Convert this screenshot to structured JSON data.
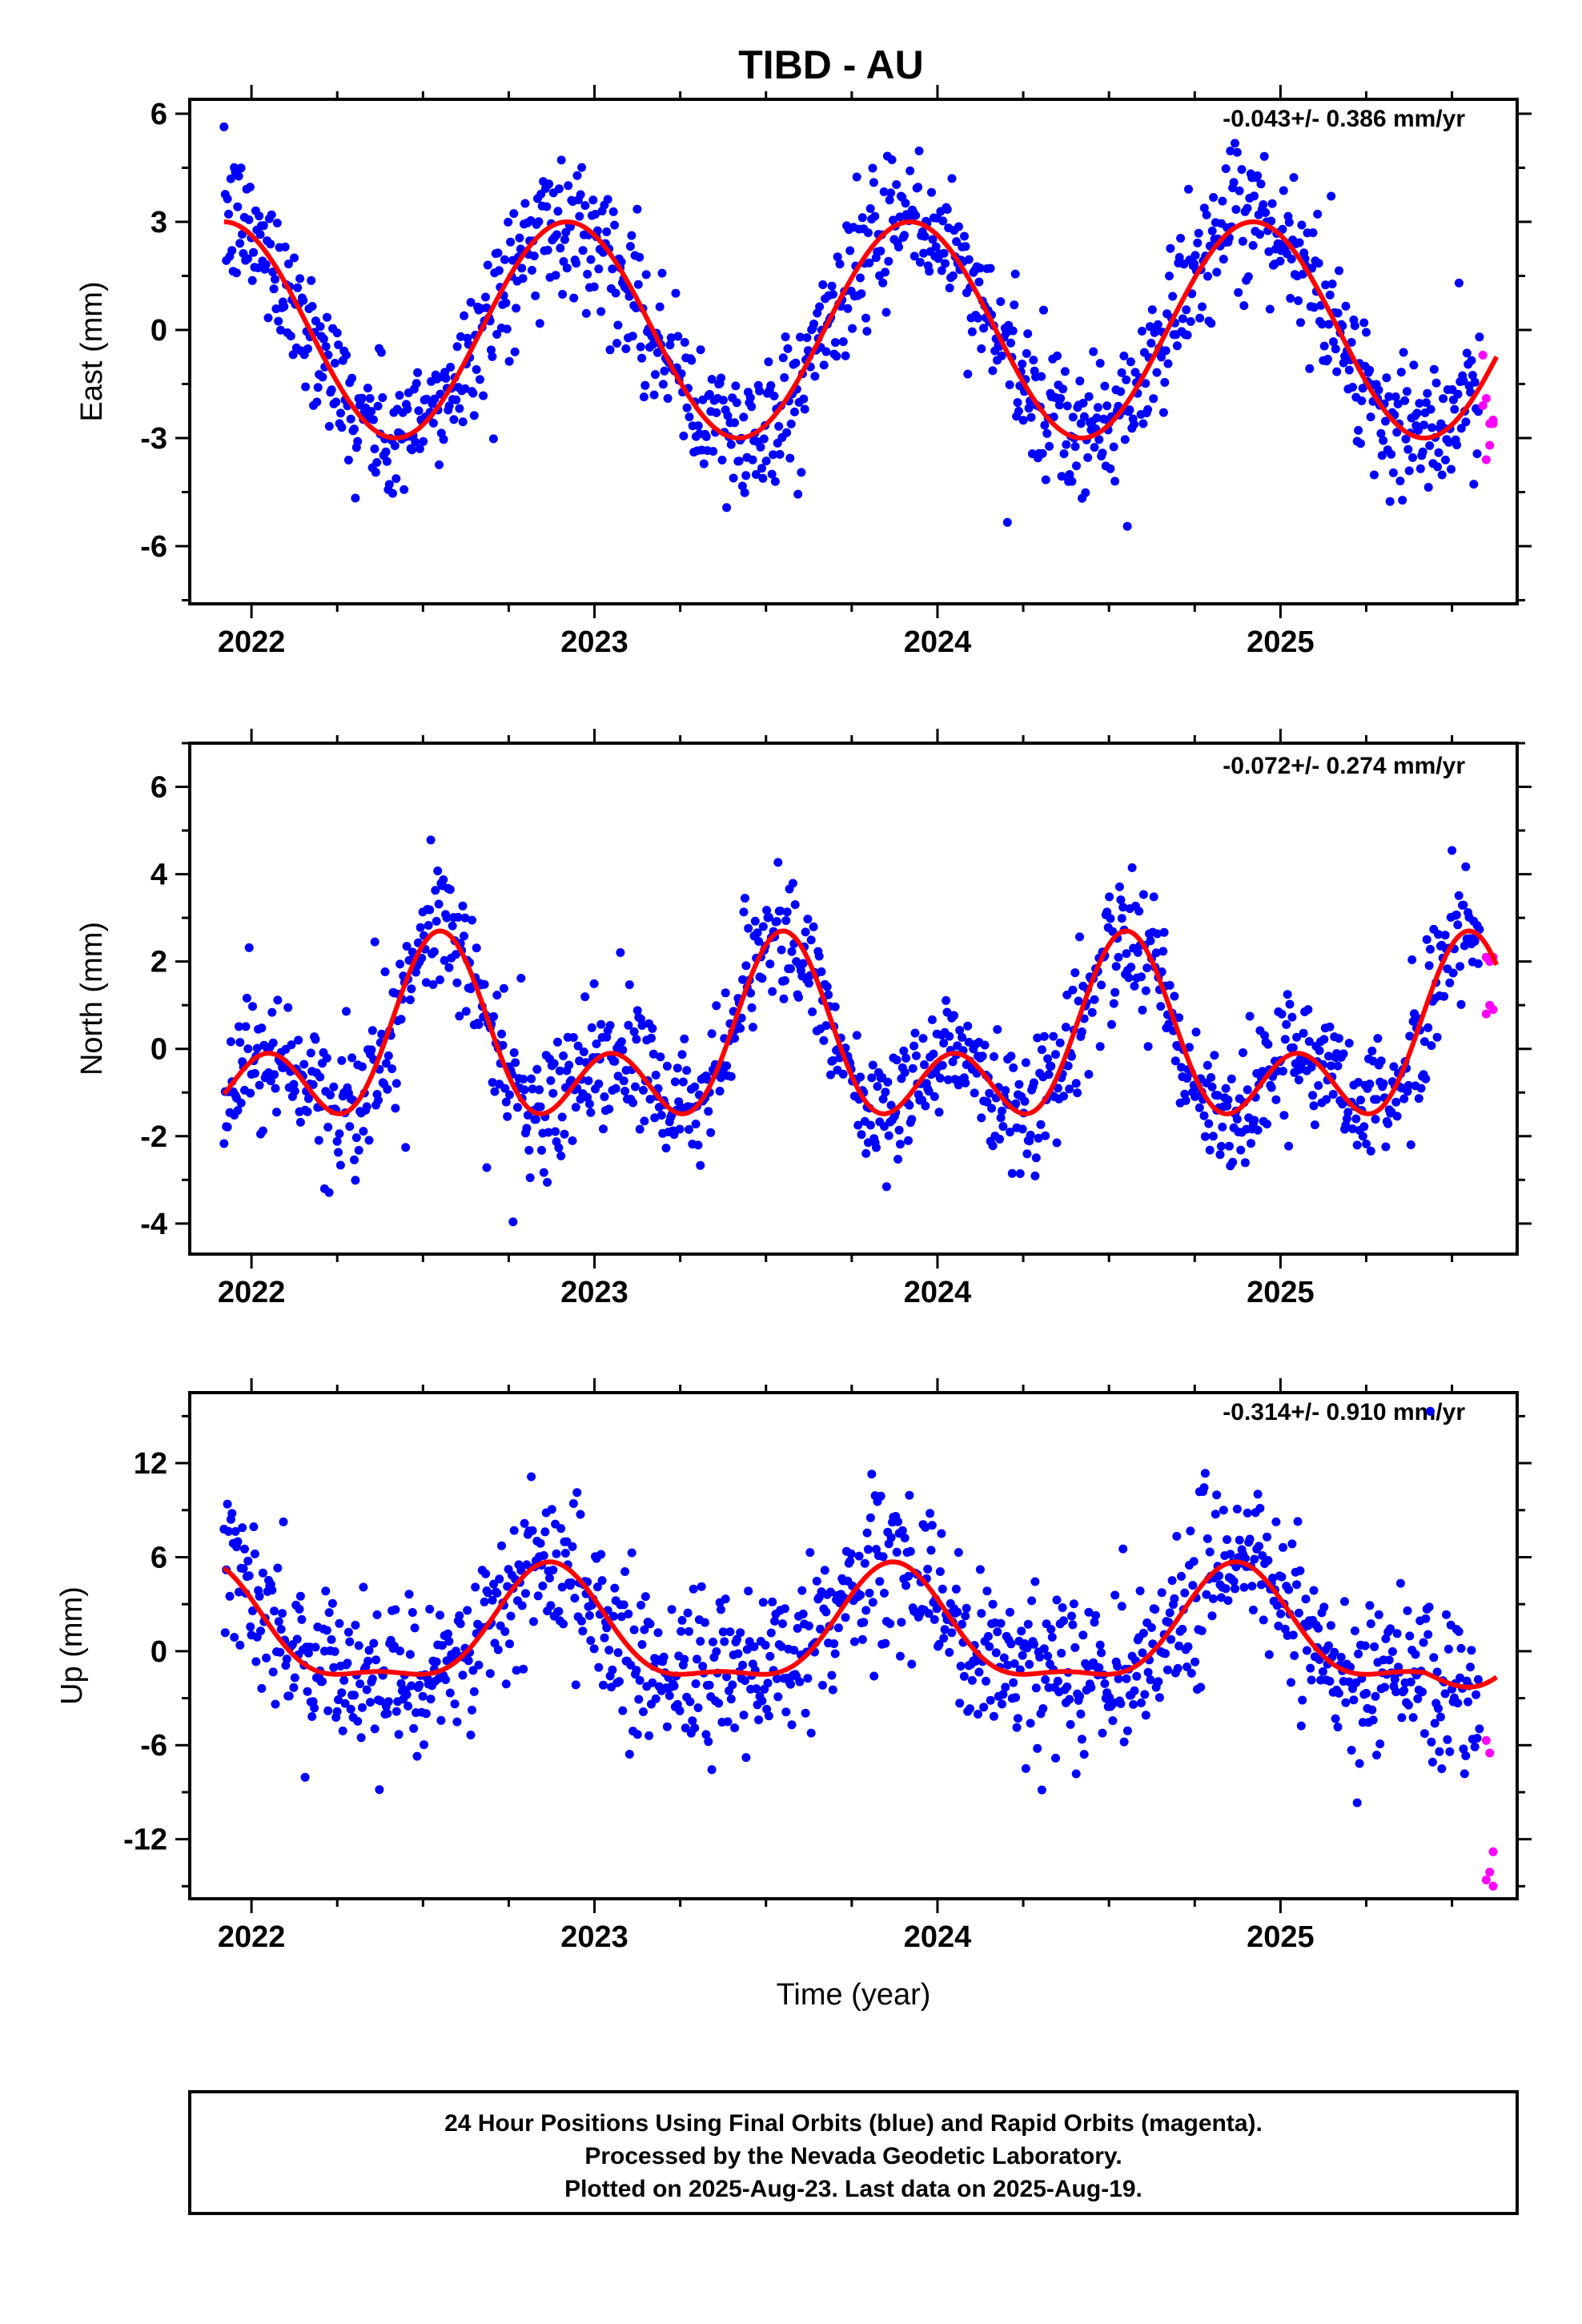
{
  "title": "TIBD - AU",
  "xlabel": "Time (year)",
  "footer": {
    "line1": "24 Hour Positions Using Final Orbits (blue) and Rapid Orbits (magenta).",
    "line2": "Processed by the Nevada Geodetic Laboratory.",
    "line3": "Plotted on 2025-Aug-23. Last data on 2025-Aug-19."
  },
  "colors": {
    "final": "#0000ff",
    "rapid": "#ff00ff",
    "model": "#ff0000",
    "axis": "#000000"
  },
  "chart_data": [
    {
      "type": "scatter",
      "panel": "east",
      "ylabel": "East (mm)",
      "rate_label": "-0.043+/- 0.386 mm/yr",
      "xlim": [
        2021.82,
        2025.69
      ],
      "ylim": [
        -7.6,
        6.4
      ],
      "yticks": [
        -6,
        -3,
        0,
        3,
        6
      ],
      "yticklabels": [
        "-6",
        "-3",
        "0",
        "3",
        "6"
      ],
      "xticks": [
        2022,
        2023,
        2024,
        2025
      ],
      "xticklabels": [
        "2022",
        "2023",
        "2024",
        "2025"
      ],
      "model": {
        "amp1": 3.0,
        "amp2": 0.0,
        "phase1": 2021.92,
        "phase2": 0,
        "offset": 0,
        "taper_start": 2025.53,
        "taper_slope": 0
      },
      "series": [
        {
          "name": "Final Orbits (blue)",
          "x_range": [
            2021.92,
            2025.58
          ],
          "n": 1110,
          "noise": 0.95
        },
        {
          "name": "Rapid Orbits (magenta)",
          "x_range": [
            2025.58,
            2025.63
          ],
          "n": 8,
          "noise": 0.0,
          "points": [
            [
              2025.59,
              -0.7
            ],
            [
              2025.6,
              -1.9
            ],
            [
              2025.61,
              -2.6
            ],
            [
              2025.62,
              -2.5
            ],
            [
              2025.61,
              -3.2
            ],
            [
              2025.6,
              -3.6
            ],
            [
              2025.62,
              -2.6
            ],
            [
              2025.59,
              -2.1
            ]
          ]
        }
      ]
    },
    {
      "type": "scatter",
      "panel": "north",
      "ylabel": "North (mm)",
      "rate_label": "-0.072+/- 0.274 mm/yr",
      "xlim": [
        2021.82,
        2025.69
      ],
      "ylim": [
        -4.7,
        7.0
      ],
      "yticks": [
        -4,
        -2,
        0,
        2,
        4,
        6
      ],
      "yticklabels": [
        "-4",
        "-2",
        "0",
        "2",
        "4",
        "6"
      ],
      "xticks": [
        2022,
        2023,
        2024,
        2025
      ],
      "xticklabels": [
        "2022",
        "2023",
        "2024",
        "2025"
      ],
      "model": {
        "amp1": 1.4,
        "amp2": 1.3,
        "phase1": 2021.55,
        "phase2": 2021.55,
        "offset": 0,
        "taper_start": 9999,
        "taper_slope": 0
      },
      "series": [
        {
          "name": "Final Orbits (blue)",
          "x_range": [
            2021.92,
            2025.58
          ],
          "n": 1100,
          "noise": 0.75
        },
        {
          "name": "Rapid Orbits (magenta)",
          "x_range": [
            2025.58,
            2025.63
          ],
          "n": 6,
          "noise": 0.0,
          "points": [
            [
              2025.6,
              2.1
            ],
            [
              2025.61,
              2.0
            ],
            [
              2025.62,
              0.9
            ],
            [
              2025.61,
              1.0
            ],
            [
              2025.6,
              0.8
            ],
            [
              2025.62,
              2.1
            ]
          ]
        }
      ]
    },
    {
      "type": "scatter",
      "panel": "up",
      "ylabel": "Up (mm)",
      "rate_label": "-0.314+/- 0.910 mm/yr",
      "xlim": [
        2021.82,
        2025.69
      ],
      "ylim": [
        -15.8,
        16.5
      ],
      "yticks": [
        -12,
        -6,
        0,
        6,
        12
      ],
      "yticklabels": [
        "-12",
        "-6",
        "0",
        "6",
        "12"
      ],
      "xticks": [
        2022,
        2023,
        2024,
        2025
      ],
      "xticklabels": [
        "2022",
        "2023",
        "2024",
        "2025"
      ],
      "model": {
        "amp1": 3.5,
        "amp2": 1.2,
        "phase1": 2021.87,
        "phase2": 2021.87,
        "offset": 1.0,
        "taper_start": 2025.42,
        "taper_slope": -8
      },
      "series": [
        {
          "name": "Final Orbits (blue)",
          "x_range": [
            2021.92,
            2025.58
          ],
          "n": 1100,
          "noise": 2.6
        },
        {
          "name": "Rapid Orbits (magenta)",
          "x_range": [
            2025.58,
            2025.63
          ],
          "n": 6,
          "noise": 0.0,
          "points": [
            [
              2025.6,
              -5.7
            ],
            [
              2025.61,
              -6.5
            ],
            [
              2025.62,
              -12.8
            ],
            [
              2025.61,
              -14.1
            ],
            [
              2025.6,
              -14.6
            ],
            [
              2025.62,
              -15.0
            ]
          ]
        }
      ]
    }
  ]
}
